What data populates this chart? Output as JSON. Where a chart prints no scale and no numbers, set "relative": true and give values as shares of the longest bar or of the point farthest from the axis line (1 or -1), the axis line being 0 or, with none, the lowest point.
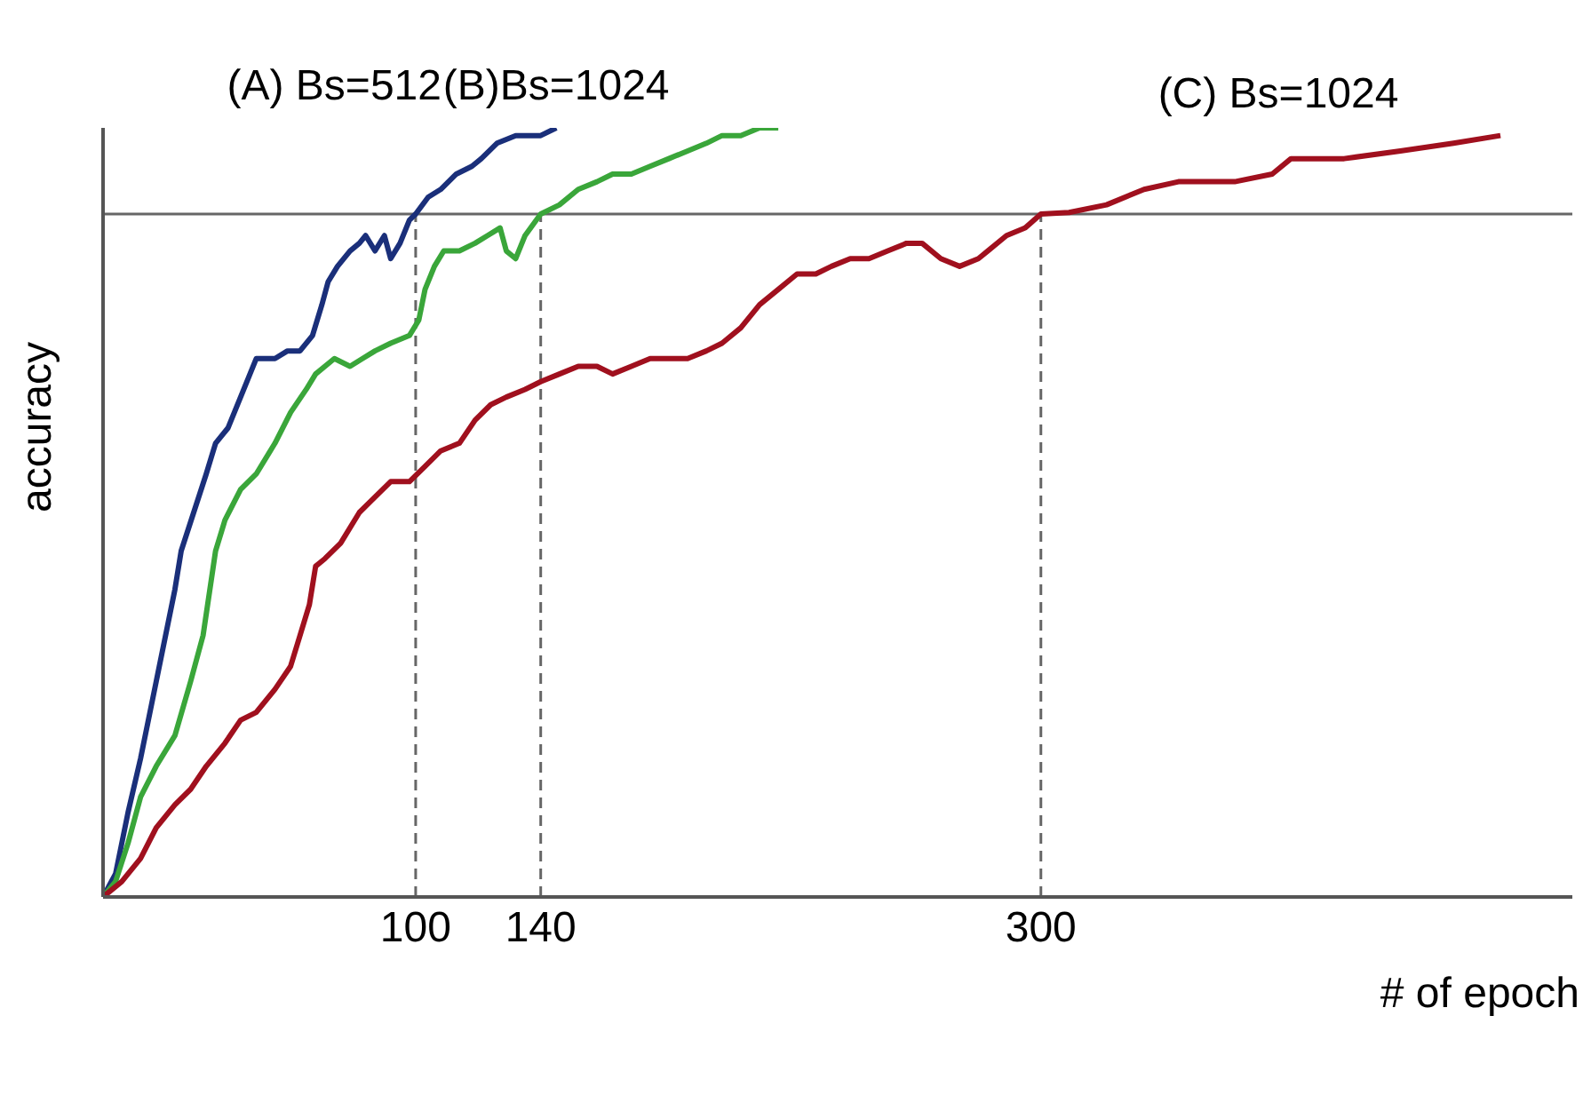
{
  "chart_data": {
    "type": "line",
    "relative": true,
    "xlabel": "# of epoch",
    "ylabel": "accuracy",
    "xlim": [
      0,
      470
    ],
    "xticks": [
      100,
      140,
      300
    ],
    "legend": false,
    "grid": false,
    "line_style": "solid",
    "marker": "none",
    "series": [
      {
        "name": "(A) Bs=512",
        "color": "#1a2f7a",
        "x": [
          0,
          4,
          8,
          12,
          17,
          23,
          25,
          29,
          33,
          36,
          40,
          44,
          49,
          52,
          55,
          59,
          63,
          67,
          70,
          72,
          75,
          79,
          82,
          84,
          87,
          90,
          92,
          95,
          98,
          100,
          104,
          108,
          113,
          118,
          121,
          126,
          132,
          140,
          145
        ],
        "values": [
          0,
          0.03,
          0.11,
          0.18,
          0.28,
          0.4,
          0.45,
          0.5,
          0.55,
          0.59,
          0.61,
          0.65,
          0.7,
          0.7,
          0.7,
          0.71,
          0.71,
          0.73,
          0.77,
          0.8,
          0.82,
          0.84,
          0.85,
          0.86,
          0.84,
          0.86,
          0.83,
          0.85,
          0.88,
          0.888,
          0.91,
          0.92,
          0.94,
          0.95,
          0.96,
          0.98,
          0.99,
          0.99,
          1.0
        ]
      },
      {
        "name": "(B)Bs=1024",
        "color": "#3aa63a",
        "x": [
          0,
          4,
          8,
          12,
          17,
          23,
          28,
          32,
          36,
          39,
          44,
          49,
          55,
          60,
          65,
          68,
          74,
          79,
          83,
          87,
          92,
          98,
          101,
          103,
          106,
          109,
          114,
          119,
          123,
          127,
          129,
          132,
          135,
          140,
          146,
          152,
          158,
          163,
          169,
          175,
          181,
          187,
          193,
          198,
          204,
          210,
          216
        ],
        "values": [
          0,
          0.02,
          0.07,
          0.13,
          0.17,
          0.21,
          0.28,
          0.34,
          0.45,
          0.49,
          0.53,
          0.55,
          0.59,
          0.63,
          0.66,
          0.68,
          0.7,
          0.69,
          0.7,
          0.71,
          0.72,
          0.73,
          0.75,
          0.79,
          0.82,
          0.84,
          0.84,
          0.85,
          0.86,
          0.87,
          0.84,
          0.83,
          0.86,
          0.888,
          0.9,
          0.92,
          0.93,
          0.94,
          0.94,
          0.95,
          0.96,
          0.97,
          0.98,
          0.99,
          0.99,
          1.0,
          1.0
        ]
      },
      {
        "name": "(C) Bs=1024",
        "color": "#a0101e",
        "x": [
          0,
          6,
          12,
          17,
          23,
          28,
          33,
          39,
          44,
          49,
          55,
          60,
          63,
          66,
          68,
          71,
          76,
          82,
          87,
          92,
          98,
          103,
          108,
          114,
          119,
          124,
          129,
          135,
          140,
          146,
          152,
          158,
          163,
          169,
          175,
          187,
          193,
          198,
          204,
          210,
          216,
          222,
          228,
          233,
          239,
          245,
          251,
          257,
          262,
          268,
          274,
          280,
          283,
          289,
          295,
          300,
          309,
          321,
          333,
          344,
          362,
          374,
          380,
          397,
          415,
          432,
          447
        ],
        "values": [
          0,
          0.02,
          0.05,
          0.09,
          0.12,
          0.14,
          0.17,
          0.2,
          0.23,
          0.24,
          0.27,
          0.3,
          0.34,
          0.38,
          0.43,
          0.44,
          0.46,
          0.5,
          0.52,
          0.54,
          0.54,
          0.56,
          0.58,
          0.59,
          0.62,
          0.64,
          0.65,
          0.66,
          0.67,
          0.68,
          0.69,
          0.69,
          0.68,
          0.69,
          0.7,
          0.7,
          0.71,
          0.72,
          0.74,
          0.77,
          0.79,
          0.81,
          0.81,
          0.82,
          0.83,
          0.83,
          0.84,
          0.85,
          0.85,
          0.83,
          0.82,
          0.83,
          0.84,
          0.86,
          0.87,
          0.888,
          0.89,
          0.9,
          0.92,
          0.93,
          0.93,
          0.94,
          0.96,
          0.96,
          0.97,
          0.98,
          0.99
        ]
      }
    ],
    "ref_lines": [
      {
        "axis": "y",
        "value": 0.888,
        "color": "#666666",
        "line_style": "solid"
      },
      {
        "axis": "x",
        "value": 100,
        "color": "#666666",
        "line_style": "dashed"
      },
      {
        "axis": "x",
        "value": 140,
        "color": "#666666",
        "line_style": "dashed"
      },
      {
        "axis": "x",
        "value": 300,
        "color": "#666666",
        "line_style": "dashed"
      }
    ]
  }
}
